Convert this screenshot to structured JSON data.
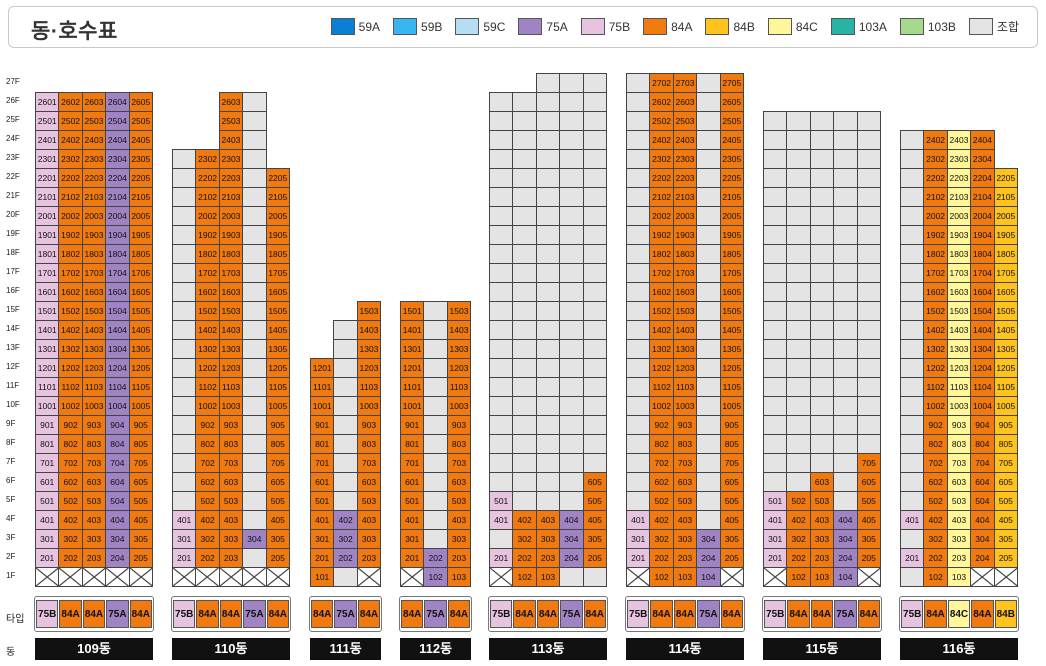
{
  "title": "동·호수표",
  "legend": [
    {
      "code": "59A",
      "label": "59A",
      "color": "#0a7fd4"
    },
    {
      "code": "59B",
      "label": "59B",
      "color": "#38b6f0"
    },
    {
      "code": "59C",
      "label": "59C",
      "color": "#b5def5"
    },
    {
      "code": "75A",
      "label": "75A",
      "color": "#9f83c3"
    },
    {
      "code": "75B",
      "label": "75B",
      "color": "#e6c4e0"
    },
    {
      "code": "84A",
      "label": "84A",
      "color": "#f07a10"
    },
    {
      "code": "84B",
      "label": "84B",
      "color": "#ffc31e"
    },
    {
      "code": "84C",
      "label": "84C",
      "color": "#fff79a"
    },
    {
      "code": "103A",
      "label": "103A",
      "color": "#27b3a3"
    },
    {
      "code": "103B",
      "label": "103B",
      "color": "#a6d98c"
    },
    {
      "code": "G",
      "label": "조합",
      "color": "#e4e4e4"
    }
  ],
  "floor_labels": [
    "27F",
    "26F",
    "25F",
    "24F",
    "23F",
    "22F",
    "21F",
    "20F",
    "19F",
    "18F",
    "17F",
    "16F",
    "15F",
    "14F",
    "13F",
    "12F",
    "11F",
    "10F",
    "9F",
    "8F",
    "7F",
    "6F",
    "5F",
    "4F",
    "3F",
    "2F",
    "1F"
  ],
  "type_row_label": "타입",
  "dong_row_label": "동",
  "buildings": [
    {
      "id": "109",
      "label": "109동",
      "types": [
        "75B",
        "84A",
        "84A",
        "75A",
        "84A"
      ],
      "columns": [
        {
          "type": "75B",
          "sale": [
            {
              "from": 2,
              "to": 26
            }
          ],
          "guild": [],
          "x": [
            1
          ]
        },
        {
          "type": "84A",
          "sale": [
            {
              "from": 2,
              "to": 26
            }
          ],
          "guild": [],
          "x": [
            1
          ]
        },
        {
          "type": "84A",
          "sale": [
            {
              "from": 2,
              "to": 26
            }
          ],
          "guild": [],
          "x": [
            1
          ]
        },
        {
          "type": "75A",
          "sale": [
            {
              "from": 2,
              "to": 26
            }
          ],
          "guild": [],
          "x": [
            1
          ]
        },
        {
          "type": "84A",
          "sale": [
            {
              "from": 2,
              "to": 26
            }
          ],
          "guild": [],
          "x": [
            1
          ]
        }
      ]
    },
    {
      "id": "110",
      "label": "110동",
      "types": [
        "75B",
        "84A",
        "84A",
        "75A",
        "84A"
      ],
      "columns": [
        {
          "type": "75B",
          "sale": [
            {
              "from": 2,
              "to": 4
            }
          ],
          "guild": [
            {
              "from": 5,
              "to": 23
            }
          ],
          "x": [
            1
          ]
        },
        {
          "type": "84A",
          "sale": [
            {
              "from": 2,
              "to": 23
            }
          ],
          "guild": [],
          "x": [
            1
          ]
        },
        {
          "type": "84A",
          "sale": [
            {
              "from": 2,
              "to": 26
            }
          ],
          "guild": [],
          "x": [
            1
          ]
        },
        {
          "type": "75A",
          "sale": [
            {
              "from": 3,
              "to": 3
            }
          ],
          "guild": [
            {
              "from": 2,
              "to": 2
            },
            {
              "from": 4,
              "to": 26
            }
          ],
          "x": [
            1
          ]
        },
        {
          "type": "84A",
          "sale": [
            {
              "from": 2,
              "to": 22
            }
          ],
          "guild": [],
          "x": [
            1
          ]
        }
      ]
    },
    {
      "id": "111",
      "label": "111동",
      "types": [
        "84A",
        "75A",
        "84A"
      ],
      "columns": [
        {
          "type": "84A",
          "sale": [
            {
              "from": 1,
              "to": 12
            }
          ],
          "guild": [],
          "x": []
        },
        {
          "type": "75A",
          "sale": [
            {
              "from": 2,
              "to": 4
            }
          ],
          "guild": [
            {
              "from": 1,
              "to": 1
            },
            {
              "from": 5,
              "to": 14
            }
          ],
          "x": []
        },
        {
          "type": "84A",
          "sale": [
            {
              "from": 2,
              "to": 15
            }
          ],
          "guild": [],
          "x": [
            1
          ]
        }
      ]
    },
    {
      "id": "112",
      "label": "112동",
      "types": [
        "84A",
        "75A",
        "84A"
      ],
      "columns": [
        {
          "type": "84A",
          "sale": [
            {
              "from": 2,
              "to": 15
            }
          ],
          "guild": [],
          "x": [
            1
          ]
        },
        {
          "type": "75A",
          "sale": [
            {
              "from": 1,
              "to": 2
            }
          ],
          "guild": [
            {
              "from": 3,
              "to": 15
            }
          ],
          "x": []
        },
        {
          "type": "84A",
          "sale": [
            {
              "from": 1,
              "to": 15
            }
          ],
          "guild": [],
          "x": []
        }
      ]
    },
    {
      "id": "113",
      "label": "113동",
      "types": [
        "75B",
        "84A",
        "84A",
        "75A",
        "84A"
      ],
      "columns": [
        {
          "type": "75B",
          "sale": [
            {
              "from": 2,
              "to": 2
            },
            {
              "from": 4,
              "to": 5
            }
          ],
          "guild": [
            {
              "from": 3,
              "to": 3
            },
            {
              "from": 6,
              "to": 26
            }
          ],
          "x": [
            1
          ]
        },
        {
          "type": "84A",
          "sale": [
            {
              "from": 1,
              "to": 4
            }
          ],
          "guild": [
            {
              "from": 5,
              "to": 26
            }
          ],
          "x": []
        },
        {
          "type": "84A",
          "sale": [
            {
              "from": 1,
              "to": 4
            }
          ],
          "guild": [
            {
              "from": 5,
              "to": 27
            }
          ],
          "x": []
        },
        {
          "type": "75A",
          "sale": [
            {
              "from": 2,
              "to": 4
            }
          ],
          "guild": [
            {
              "from": 1,
              "to": 1
            },
            {
              "from": 5,
              "to": 27
            }
          ],
          "x": []
        },
        {
          "type": "84A",
          "sale": [
            {
              "from": 2,
              "to": 6
            }
          ],
          "guild": [
            {
              "from": 1,
              "to": 1
            },
            {
              "from": 7,
              "to": 27
            }
          ],
          "x": []
        }
      ]
    },
    {
      "id": "114",
      "label": "114동",
      "types": [
        "75B",
        "84A",
        "84A",
        "75A",
        "84A"
      ],
      "columns": [
        {
          "type": "75B",
          "sale": [
            {
              "from": 2,
              "to": 4
            }
          ],
          "guild": [
            {
              "from": 5,
              "to": 27
            }
          ],
          "x": [
            1
          ]
        },
        {
          "type": "84A",
          "sale": [
            {
              "from": 1,
              "to": 27
            }
          ],
          "guild": [],
          "x": []
        },
        {
          "type": "84A",
          "sale": [
            {
              "from": 1,
              "to": 27
            }
          ],
          "guild": [],
          "x": []
        },
        {
          "type": "75A",
          "sale": [
            {
              "from": 1,
              "to": 3
            }
          ],
          "guild": [
            {
              "from": 4,
              "to": 27
            }
          ],
          "x": []
        },
        {
          "type": "84A",
          "sale": [
            {
              "from": 2,
              "to": 27
            }
          ],
          "guild": [],
          "x": [
            1
          ]
        }
      ]
    },
    {
      "id": "115",
      "label": "115동",
      "types": [
        "75B",
        "84A",
        "84A",
        "75A",
        "84A"
      ],
      "columns": [
        {
          "type": "75B",
          "sale": [
            {
              "from": 2,
              "to": 5
            }
          ],
          "guild": [
            {
              "from": 6,
              "to": 25
            }
          ],
          "x": [
            1
          ]
        },
        {
          "type": "84A",
          "sale": [
            {
              "from": 1,
              "to": 5
            }
          ],
          "guild": [
            {
              "from": 6,
              "to": 25
            }
          ],
          "x": []
        },
        {
          "type": "84A",
          "sale": [
            {
              "from": 1,
              "to": 6
            }
          ],
          "guild": [
            {
              "from": 7,
              "to": 25
            }
          ],
          "x": []
        },
        {
          "type": "75A",
          "sale": [
            {
              "from": 1,
              "to": 4
            }
          ],
          "guild": [
            {
              "from": 5,
              "to": 25
            }
          ],
          "x": []
        },
        {
          "type": "84A",
          "sale": [
            {
              "from": 2,
              "to": 7
            }
          ],
          "guild": [
            {
              "from": 8,
              "to": 25
            }
          ],
          "x": [
            1
          ]
        }
      ]
    },
    {
      "id": "116",
      "label": "116동",
      "types": [
        "75B",
        "84A",
        "84C",
        "84A",
        "84B"
      ],
      "columns": [
        {
          "type": "75B",
          "sale": [
            {
              "from": 2,
              "to": 2
            },
            {
              "from": 4,
              "to": 4
            }
          ],
          "guild": [
            {
              "from": 1,
              "to": 1
            },
            {
              "from": 3,
              "to": 3
            },
            {
              "from": 5,
              "to": 24
            }
          ],
          "x": []
        },
        {
          "type": "84A",
          "sale": [
            {
              "from": 1,
              "to": 24
            }
          ],
          "guild": [],
          "x": []
        },
        {
          "type": "84C",
          "sale": [
            {
              "from": 1,
              "to": 24
            }
          ],
          "guild": [],
          "x": []
        },
        {
          "type": "84A",
          "sale": [
            {
              "from": 2,
              "to": 24
            }
          ],
          "guild": [],
          "x": [
            1
          ]
        },
        {
          "type": "84B",
          "sale": [
            {
              "from": 2,
              "to": 22
            }
          ],
          "guild": [],
          "x": [
            1
          ]
        }
      ]
    }
  ]
}
